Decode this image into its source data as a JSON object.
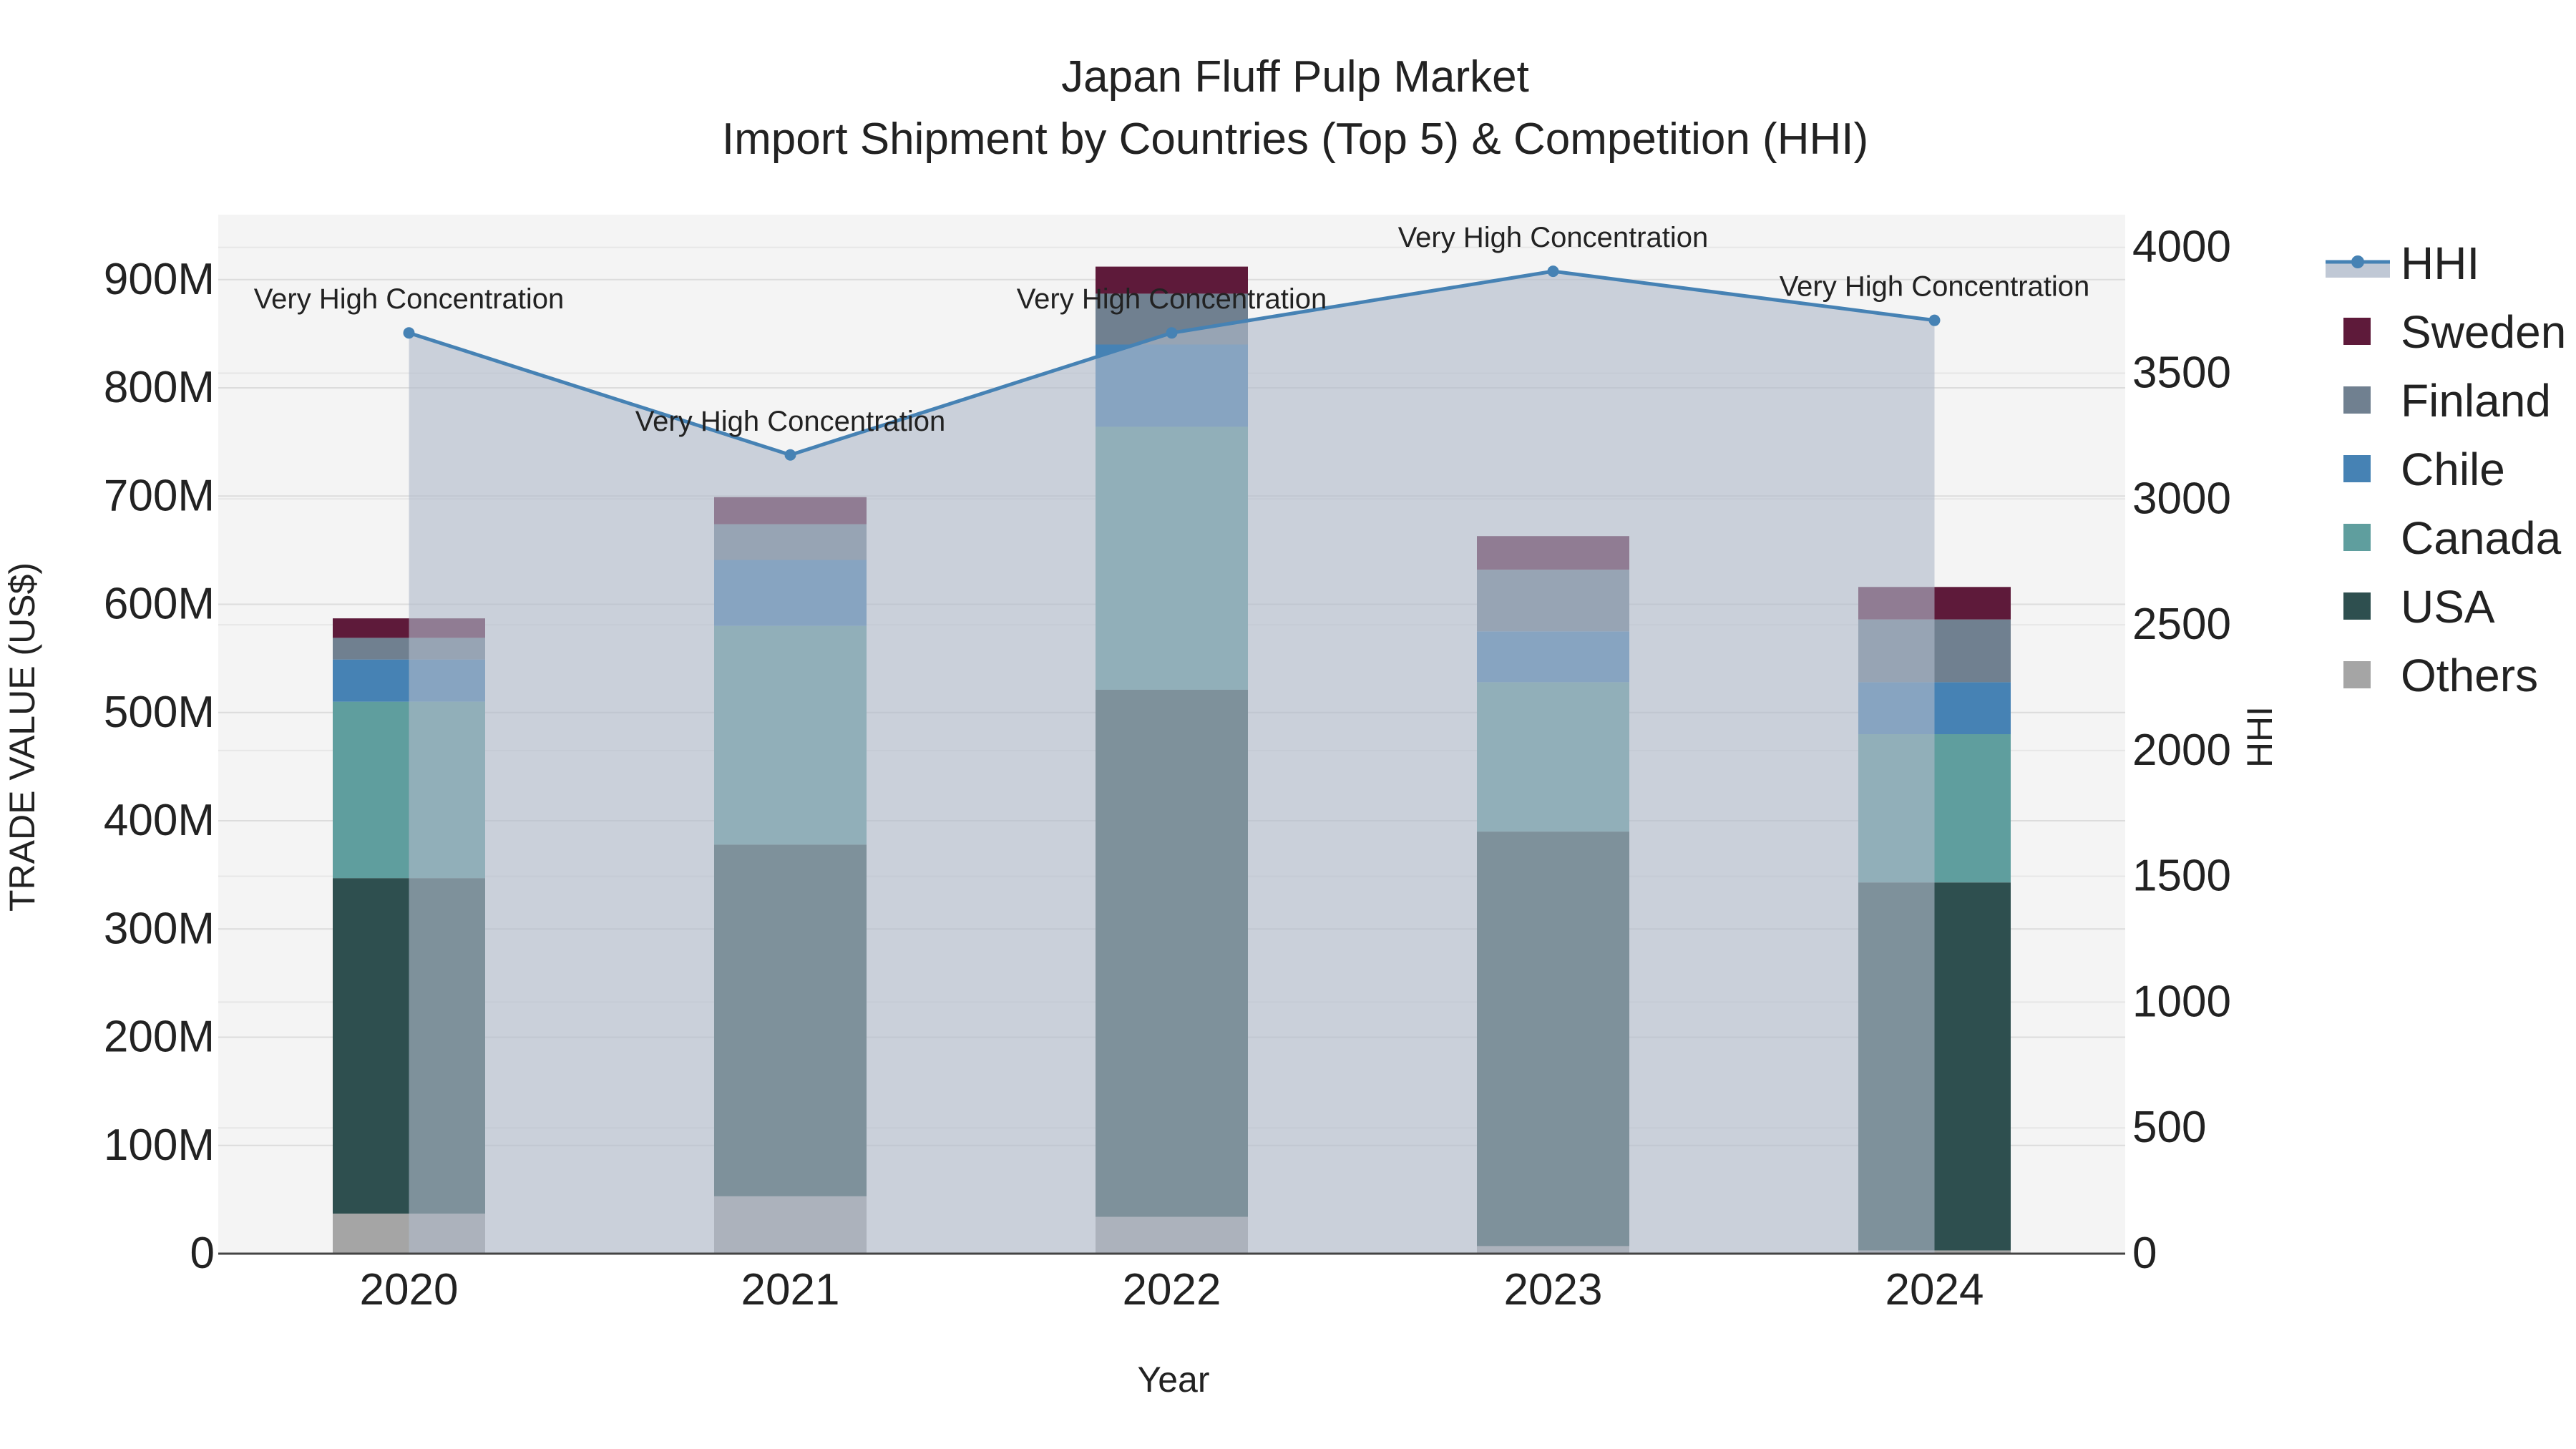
{
  "chart_data": {
    "type": "bar",
    "title": "Japan Fluff Pulp Market",
    "subtitle": "Import Shipment by Countries (Top 5) & Competition (HHI)",
    "xlabel": "Year",
    "ylabel": "TRADE VALUE (US$)",
    "y2label": "HHI",
    "categories": [
      "2020",
      "2021",
      "2022",
      "2023",
      "2024"
    ],
    "ylim": [
      0,
      960000000
    ],
    "y_ticks": [
      0,
      100000000,
      200000000,
      300000000,
      400000000,
      500000000,
      600000000,
      700000000,
      800000000,
      900000000
    ],
    "y_tick_labels": [
      "0",
      "100M",
      "200M",
      "300M",
      "400M",
      "500M",
      "600M",
      "700M",
      "800M",
      "900M"
    ],
    "y2lim": [
      0,
      4130
    ],
    "y2_ticks": [
      0,
      500,
      1000,
      1500,
      2000,
      2500,
      3000,
      3500,
      4000
    ],
    "y2_tick_labels": [
      "0",
      "500",
      "1000",
      "1500",
      "2000",
      "2500",
      "3000",
      "3500",
      "4000"
    ],
    "series": [
      {
        "name": "Others",
        "color": "#a5a5a5",
        "values": [
          37000000,
          53000000,
          34000000,
          7000000,
          3000000
        ]
      },
      {
        "name": "USA",
        "color": "#2e4f4f",
        "values": [
          310000000,
          325000000,
          487000000,
          383000000,
          340000000
        ]
      },
      {
        "name": "Canada",
        "color": "#5f9e9e",
        "values": [
          163000000,
          202000000,
          243000000,
          138000000,
          137000000
        ]
      },
      {
        "name": "Chile",
        "color": "#4682b4",
        "values": [
          39000000,
          61000000,
          76000000,
          47000000,
          48000000
        ]
      },
      {
        "name": "Finland",
        "color": "#708090",
        "values": [
          20000000,
          33000000,
          47000000,
          57000000,
          58000000
        ]
      },
      {
        "name": "Sweden",
        "color": "#5e1a3a",
        "values": [
          18000000,
          25000000,
          25000000,
          31000000,
          30000000
        ]
      }
    ],
    "hhi": {
      "name": "HHI",
      "color": "#4682b4",
      "values": [
        3660,
        3175,
        3660,
        3905,
        3710
      ],
      "annotations": [
        "Very High Concentration",
        "Very High Concentration",
        "Very High Concentration",
        "Very High Concentration",
        "Very High Concentration"
      ]
    },
    "legend": {
      "placement": "top-right",
      "items": [
        "HHI",
        "Sweden",
        "Finland",
        "Chile",
        "Canada",
        "USA",
        "Others"
      ]
    }
  }
}
